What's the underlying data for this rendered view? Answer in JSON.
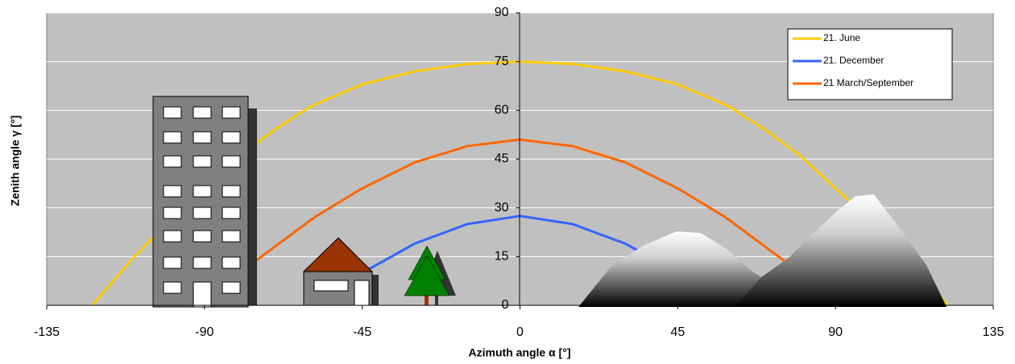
{
  "chart_data": {
    "type": "line",
    "x_label": "Azimuth angle α [°]",
    "y_label": "Zenith angle γ [°]",
    "x": [
      -122,
      -110,
      -100,
      -90,
      -80,
      -75,
      -70,
      -60,
      -58,
      -45,
      -30,
      -15,
      0,
      15,
      30,
      45,
      58,
      60,
      70,
      75,
      80,
      90,
      100,
      110,
      122
    ],
    "series": [
      {
        "name": "21. June",
        "color": "#ffcc00",
        "values": [
          0,
          15,
          26,
          36,
          46,
          50,
          54,
          61,
          62,
          68,
          72,
          74.3,
          75,
          74.3,
          72,
          68,
          62,
          61,
          54,
          50,
          46,
          36,
          26,
          15,
          0
        ]
      },
      {
        "name": "21. December",
        "color": "#3366ff",
        "values": [
          null,
          null,
          null,
          null,
          null,
          null,
          null,
          null,
          0,
          10,
          19,
          25,
          27.5,
          25,
          19,
          10,
          0,
          null,
          null,
          null,
          null,
          null,
          null,
          null,
          null
        ]
      },
      {
        "name": "21 March/September",
        "color": "#ff6600",
        "values": [
          null,
          null,
          null,
          0,
          10,
          14,
          18,
          26,
          27.5,
          36,
          44,
          49,
          51,
          49,
          44,
          36,
          27.5,
          26,
          18,
          14,
          10,
          0,
          null,
          null,
          null
        ]
      }
    ],
    "xlim": [
      -135,
      135
    ],
    "ylim": [
      0,
      90
    ],
    "xticks": [
      -135,
      -90,
      -45,
      0,
      45,
      90,
      135
    ],
    "yticks": [
      0,
      15,
      30,
      45,
      60,
      75,
      90
    ],
    "grid": true,
    "legend": "upper right"
  }
}
